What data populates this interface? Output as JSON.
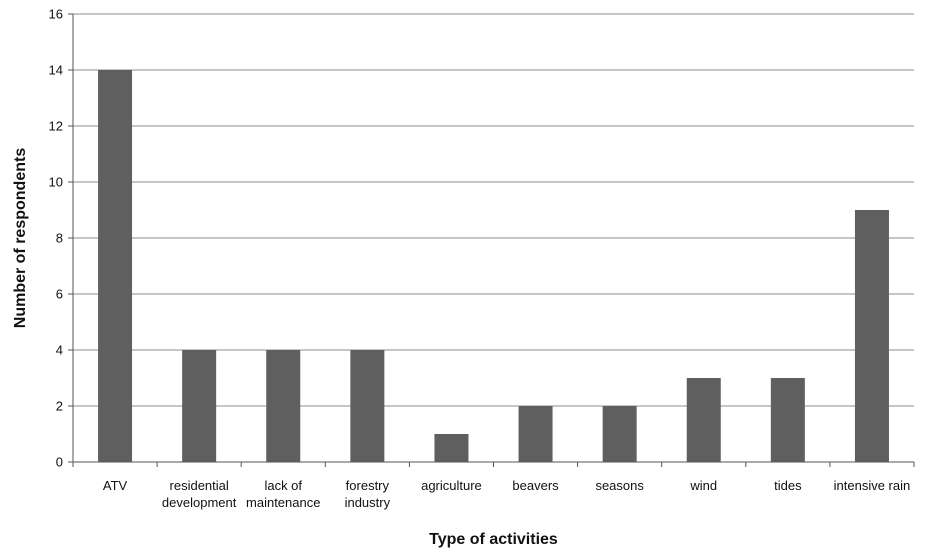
{
  "chart_data": {
    "type": "bar",
    "title": "",
    "xlabel": "Type of activities",
    "ylabel": "Number of respondents",
    "ylim": [
      0,
      16
    ],
    "yticks": [
      0,
      2,
      4,
      6,
      8,
      10,
      12,
      14,
      16
    ],
    "grid": true,
    "legend": "none",
    "categories": [
      [
        "ATV"
      ],
      [
        "residential",
        "development"
      ],
      [
        "lack of",
        "maintenance"
      ],
      [
        "forestry",
        "industry"
      ],
      [
        "agriculture"
      ],
      [
        "beavers"
      ],
      [
        "seasons"
      ],
      [
        "wind"
      ],
      [
        "tides"
      ],
      [
        "intensive rain"
      ]
    ],
    "values": [
      14,
      4,
      4,
      4,
      1,
      2,
      2,
      3,
      3,
      9
    ],
    "bar_color": "#5f5f5f",
    "grid_color": "#8c8c8c"
  }
}
